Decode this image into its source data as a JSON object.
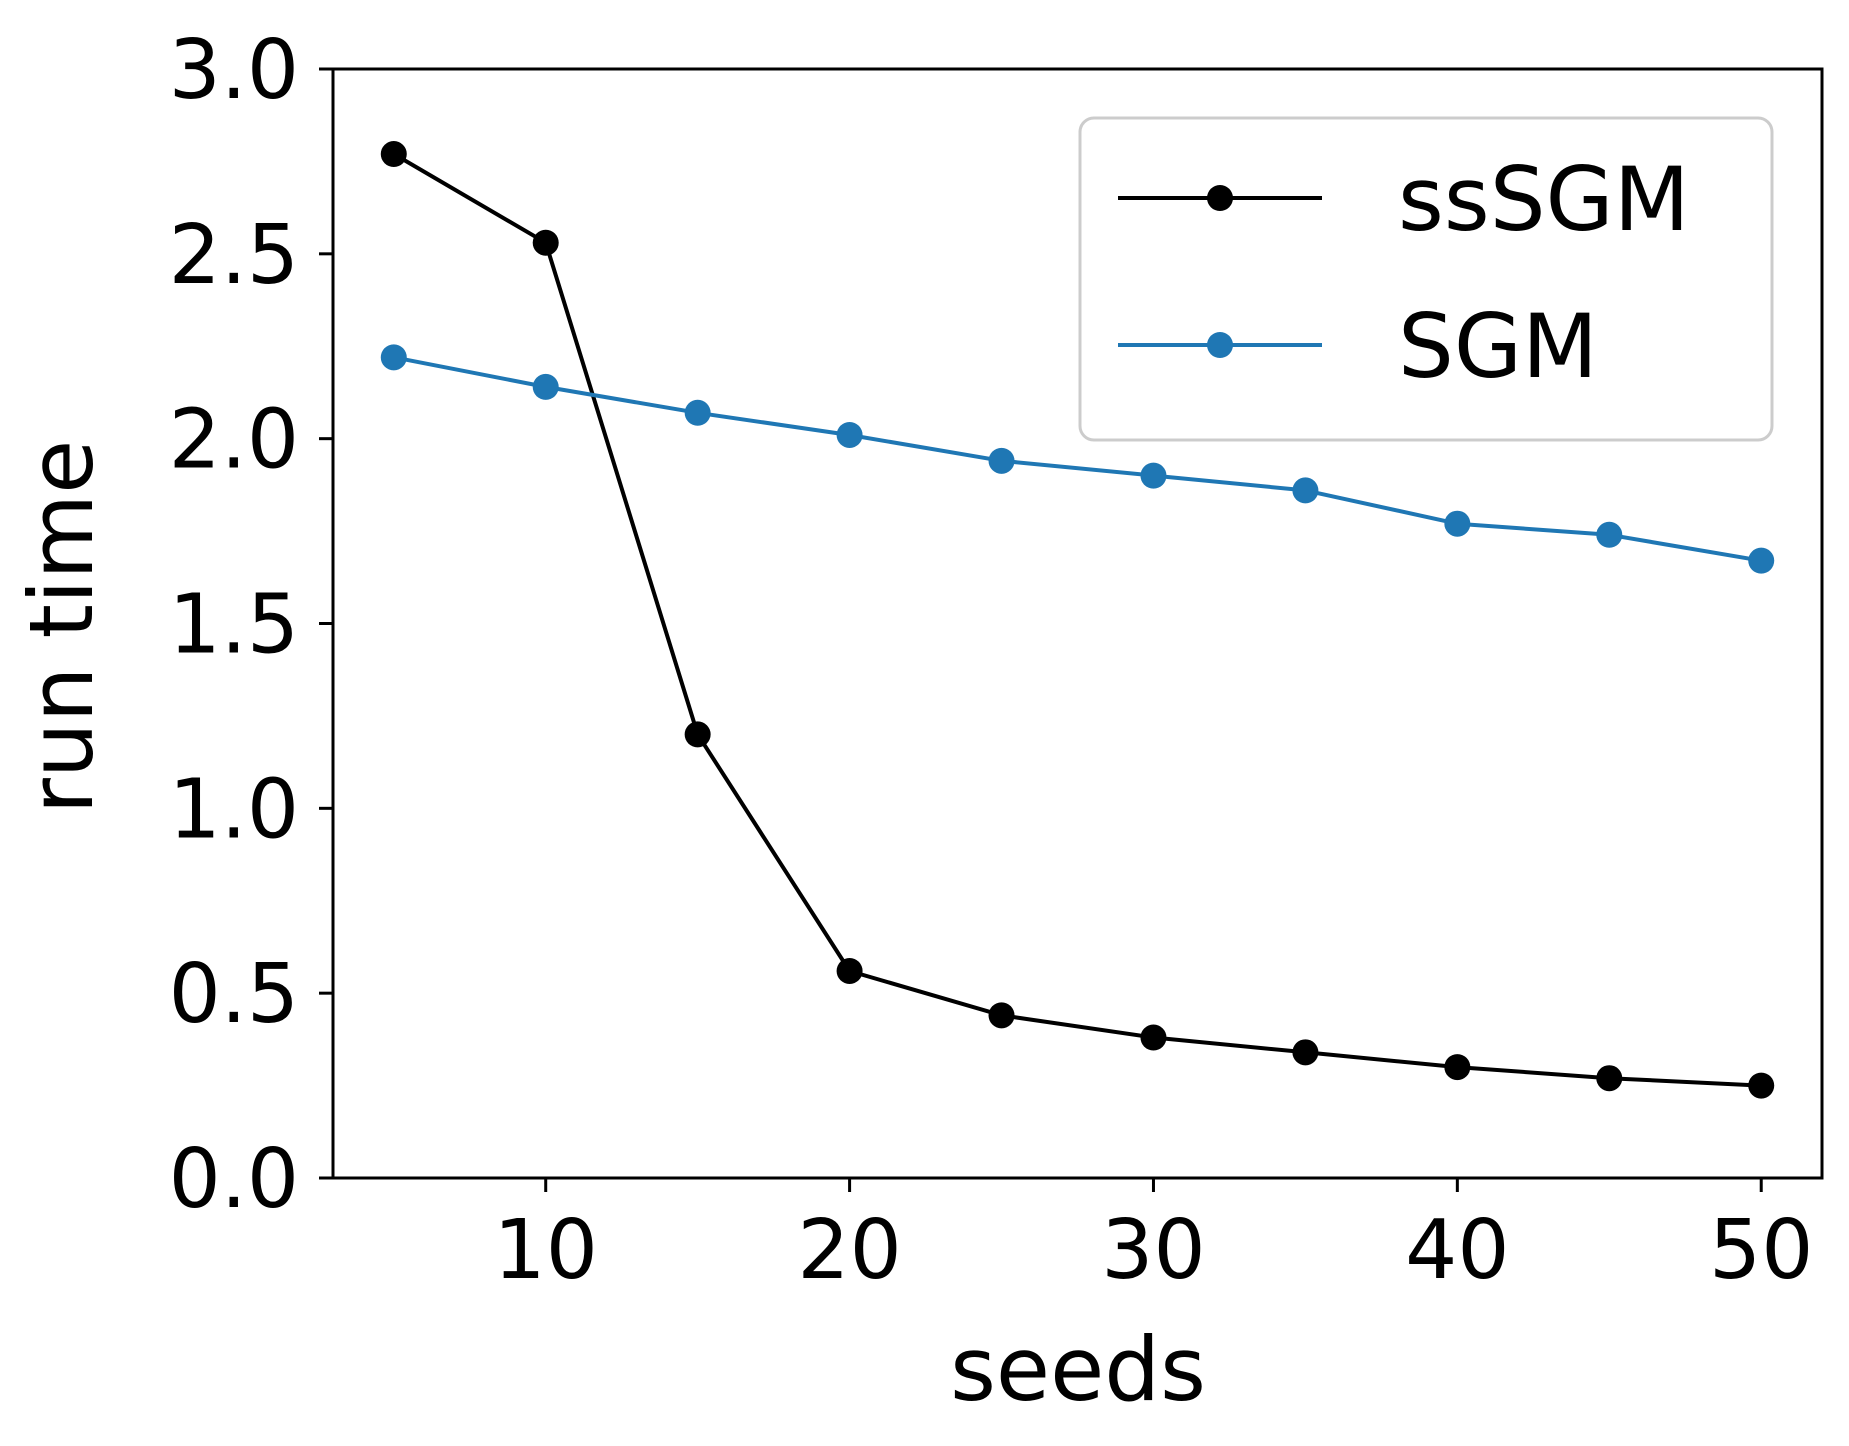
{
  "chart_data": {
    "type": "line",
    "title": "",
    "xlabel": "seeds",
    "ylabel": "run time",
    "xlim": [
      3,
      52
    ],
    "ylim": [
      0.0,
      3.0
    ],
    "xticks": [
      10,
      20,
      30,
      40,
      50
    ],
    "xtick_labels": [
      "10",
      "20",
      "30",
      "40",
      "50"
    ],
    "yticks": [
      0.0,
      0.5,
      1.0,
      1.5,
      2.0,
      2.5,
      3.0
    ],
    "ytick_labels": [
      "0.0",
      "0.5",
      "1.0",
      "1.5",
      "2.0",
      "2.5",
      "3.0"
    ],
    "grid": false,
    "legend_position": "top-right",
    "x": [
      5,
      10,
      15,
      20,
      25,
      30,
      35,
      40,
      45,
      50
    ],
    "series": [
      {
        "name": "ssSGM",
        "color": "#000000",
        "values": [
          2.77,
          2.53,
          1.2,
          0.56,
          0.44,
          0.38,
          0.34,
          0.3,
          0.27,
          0.25
        ]
      },
      {
        "name": "SGM",
        "color": "#1f77b4",
        "values": [
          2.22,
          2.14,
          2.07,
          2.01,
          1.94,
          1.9,
          1.86,
          1.77,
          1.74,
          1.67
        ]
      }
    ]
  }
}
